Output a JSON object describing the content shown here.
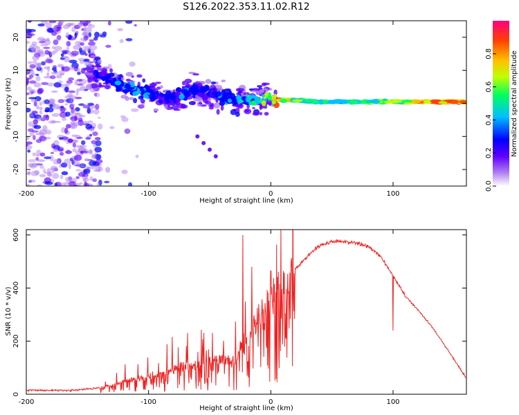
{
  "title": "S126.2022.353.11.02.R12",
  "chart_data": [
    {
      "type": "heatmap",
      "xlabel": "Height of straight line (km)",
      "ylabel": "Frequency (Hz)",
      "xlim": [
        -200,
        160
      ],
      "ylim": [
        -25,
        25
      ],
      "x_ticks": [
        "-200",
        "-100",
        "0",
        "100"
      ],
      "y_ticks": [
        "-20",
        "-10",
        "0",
        "10",
        "20"
      ],
      "colorbar": {
        "label": "Normalized spectral amplitude",
        "range": [
          0.0,
          1.0
        ],
        "ticks": [
          "0.0",
          "0.2",
          "0.4",
          "0.6",
          "0.8"
        ],
        "colors": [
          "#ffffff",
          "#b080f0",
          "#6000ff",
          "#0000ff",
          "#00c0ff",
          "#00ff60",
          "#c0ff00",
          "#ffc000",
          "#ff4000",
          "#ff0080"
        ]
      },
      "ridge": {
        "x": [
          -145,
          -130,
          -120,
          -110,
          -100,
          -90,
          -80,
          -70,
          -60,
          -50,
          -40,
          -30,
          -20,
          -10,
          0,
          5,
          20,
          40,
          60,
          80,
          100,
          120,
          140,
          160
        ],
        "frequency": [
          9,
          7,
          5,
          4,
          3,
          2,
          1.5,
          3,
          4,
          3,
          2,
          1,
          1,
          1,
          2,
          1,
          1,
          0.5,
          0.5,
          0.5,
          0.5,
          0.5,
          0.5,
          0.5
        ],
        "amplitude": [
          0.25,
          0.3,
          0.4,
          0.4,
          0.35,
          0.3,
          0.3,
          0.35,
          0.3,
          0.3,
          0.35,
          0.4,
          0.45,
          0.5,
          0.7,
          0.85,
          0.6,
          0.5,
          0.5,
          0.55,
          0.6,
          0.8,
          0.85,
          0.85
        ]
      },
      "secondary_streak": {
        "x": [
          -60,
          -55,
          -50,
          -45
        ],
        "frequency": [
          -10,
          -12,
          -14,
          -16
        ]
      }
    },
    {
      "type": "line",
      "xlabel": "Height of straight line (km)",
      "ylabel": "SNR (10 * v/v)",
      "xlim": [
        -200,
        160
      ],
      "ylim": [
        0,
        620
      ],
      "x_ticks": [
        "-200",
        "-100",
        "0",
        "100"
      ],
      "y_ticks": [
        "0",
        "200",
        "400",
        "600"
      ],
      "series": [
        {
          "color": "#ee2222",
          "x": [
            -200,
            -180,
            -160,
            -150,
            -140,
            -130,
            -120,
            -110,
            -100,
            -90,
            -80,
            -70,
            -60,
            -50,
            -40,
            -30,
            -20,
            -10,
            0,
            10,
            20,
            30,
            40,
            50,
            60,
            70,
            80,
            90,
            100,
            110,
            120,
            130,
            140,
            150,
            160
          ],
          "values": [
            15,
            15,
            15,
            20,
            25,
            35,
            50,
            60,
            70,
            80,
            95,
            100,
            110,
            120,
            130,
            120,
            210,
            300,
            370,
            420,
            470,
            520,
            560,
            575,
            575,
            570,
            555,
            520,
            445,
            370,
            320,
            265,
            200,
            130,
            60
          ]
        }
      ],
      "spikes": {
        "x": [
          -23,
          0,
          100
        ],
        "values": [
          600,
          465,
          240
        ]
      }
    }
  ]
}
